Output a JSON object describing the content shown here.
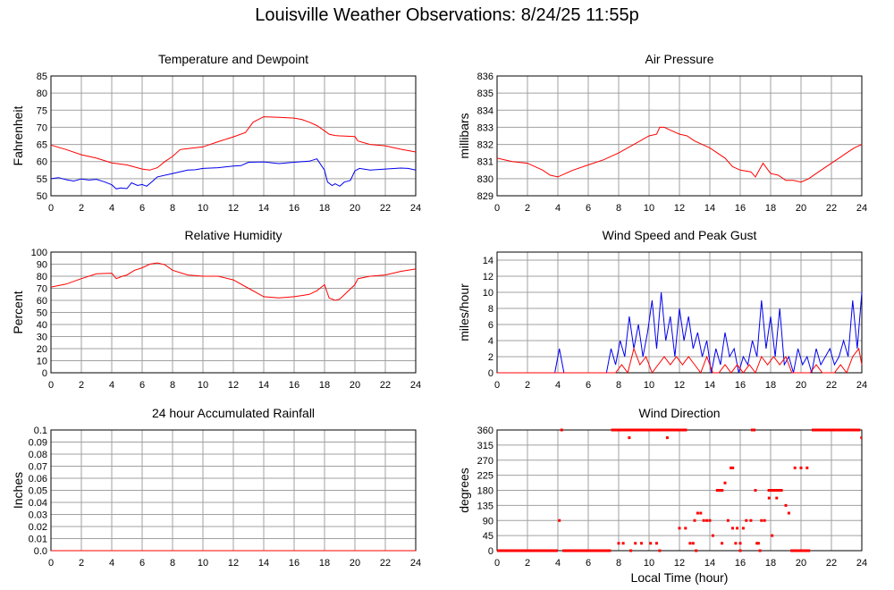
{
  "title": "Louisville Weather Observations: 8/24/25 11:55p",
  "colors": {
    "red": "#ff0000",
    "blue": "#0000ee",
    "grid": "#a0a0a0",
    "frame": "#000000"
  },
  "xlabel_common": "Local Time (hour)",
  "x_ticks": [
    "0",
    "2",
    "4",
    "6",
    "8",
    "10",
    "12",
    "14",
    "16",
    "18",
    "20",
    "22",
    "24"
  ],
  "chart_data": [
    {
      "type": "line",
      "title": "Temperature and Dewpoint",
      "ylabel": "Fahrenheit",
      "ylim": [
        50,
        85
      ],
      "yticks": [
        "50",
        "55",
        "60",
        "65",
        "70",
        "75",
        "80",
        "85"
      ],
      "xlim": [
        0,
        24
      ],
      "series": [
        {
          "color": "#ff0000",
          "x": [
            0,
            1,
            2,
            3,
            4,
            5,
            6,
            6.5,
            7,
            7.5,
            8,
            8.5,
            9,
            10,
            11,
            12,
            12.8,
            13.3,
            14,
            15,
            16,
            16.5,
            17,
            17.5,
            18,
            18.3,
            18.7,
            19,
            20,
            20.2,
            21,
            22,
            23,
            24
          ],
          "y": [
            64.8,
            63.5,
            62,
            61,
            59.6,
            59,
            57.8,
            57.5,
            58.2,
            60,
            61.5,
            63.5,
            63.8,
            64.3,
            65.8,
            67.2,
            68.5,
            71.5,
            73.1,
            72.9,
            72.7,
            72.3,
            71.5,
            70.5,
            69,
            68,
            67.6,
            67.5,
            67.3,
            66,
            65,
            64.6,
            63.6,
            62.8
          ]
        },
        {
          "color": "#0000ee",
          "x": [
            0,
            0.5,
            1,
            1.5,
            2,
            2.5,
            3,
            3.5,
            4,
            4.3,
            4.6,
            5,
            5.3,
            5.7,
            6,
            6.3,
            6.7,
            7,
            8,
            9,
            9.5,
            10,
            11,
            12,
            12.5,
            13,
            14,
            15,
            16,
            17,
            17.5,
            18,
            18.2,
            18.5,
            18.7,
            19,
            19.3,
            19.7,
            20,
            20.3,
            21,
            22,
            23,
            23.5,
            24
          ],
          "y": [
            55,
            55.3,
            54.7,
            54.3,
            54.9,
            54.6,
            54.8,
            54.1,
            53.2,
            52,
            52.3,
            52.1,
            53.8,
            53,
            53.3,
            52.8,
            54.3,
            55.5,
            56.5,
            57.5,
            57.6,
            58,
            58.2,
            58.7,
            58.8,
            59.8,
            59.9,
            59.4,
            59.8,
            60.1,
            60.8,
            57.5,
            54,
            53,
            53.5,
            52.8,
            54,
            54.5,
            57.3,
            58,
            57.5,
            57.8,
            58.1,
            58,
            57.5
          ]
        }
      ]
    },
    {
      "type": "line",
      "title": "Air Pressure",
      "ylabel": "millibars",
      "ylim": [
        829,
        836
      ],
      "yticks": [
        "829",
        "830",
        "831",
        "832",
        "833",
        "834",
        "835",
        "836"
      ],
      "xlim": [
        0,
        24
      ],
      "series": [
        {
          "color": "#ff0000",
          "x": [
            0,
            1,
            2,
            3,
            3.5,
            4,
            4.5,
            5,
            6,
            7,
            8,
            9,
            10,
            10.5,
            10.7,
            11,
            11.5,
            12,
            12.5,
            13,
            14,
            15,
            15.5,
            16,
            16.7,
            17,
            17.5,
            18,
            18.5,
            19,
            19.5,
            20,
            20.5,
            21,
            22,
            22.5,
            23,
            23.5,
            24
          ],
          "y": [
            831.2,
            831,
            830.9,
            830.5,
            830.2,
            830.1,
            830.3,
            830.5,
            830.8,
            831.1,
            831.5,
            832,
            832.5,
            832.6,
            833,
            833,
            832.8,
            832.6,
            832.5,
            832.2,
            831.8,
            831.2,
            830.7,
            830.5,
            830.4,
            830.1,
            830.9,
            830.3,
            830.2,
            829.9,
            829.9,
            829.8,
            830,
            830.3,
            830.9,
            831.2,
            831.5,
            831.8,
            832
          ]
        }
      ]
    },
    {
      "type": "line",
      "title": "Relative Humidity",
      "ylabel": "Percent",
      "ylim": [
        0,
        100
      ],
      "yticks": [
        "0",
        "10",
        "20",
        "30",
        "40",
        "50",
        "60",
        "70",
        "80",
        "90",
        "100"
      ],
      "xlim": [
        0,
        24
      ],
      "series": [
        {
          "color": "#ff0000",
          "x": [
            0,
            1,
            2,
            3,
            4,
            4.3,
            4.7,
            5,
            5.5,
            6,
            6.5,
            7,
            7.5,
            8,
            9,
            10,
            11,
            12,
            13,
            14,
            15,
            16,
            16.5,
            17,
            17.5,
            18,
            18.3,
            18.7,
            19,
            20,
            20.2,
            21,
            22,
            23,
            24
          ],
          "y": [
            71,
            73.5,
            78,
            82,
            82.5,
            78,
            80,
            81,
            85,
            87,
            90,
            91,
            89.5,
            85,
            81,
            80,
            80,
            77,
            70,
            63,
            62,
            63,
            64,
            65,
            68,
            73,
            62,
            60,
            61,
            73,
            78,
            80,
            81,
            84,
            86
          ]
        }
      ]
    },
    {
      "type": "line",
      "title": "Wind Speed and Peak Gust",
      "ylabel": "miles/hour",
      "ylim": [
        0,
        15
      ],
      "yticks": [
        "0",
        "2",
        "4",
        "6",
        "8",
        "10",
        "12",
        "14"
      ],
      "xlim": [
        0,
        24
      ],
      "series": [
        {
          "color": "#0000ee",
          "x": [
            0,
            3.8,
            4.1,
            4.4,
            7.2,
            7.5,
            7.8,
            8.1,
            8.4,
            8.7,
            9,
            9.3,
            9.6,
            9.9,
            10.2,
            10.5,
            10.8,
            11.1,
            11.4,
            11.7,
            12,
            12.3,
            12.6,
            12.9,
            13.2,
            13.5,
            13.8,
            14.1,
            14.4,
            14.7,
            15,
            15.3,
            15.6,
            15.9,
            16.2,
            16.5,
            16.8,
            17.1,
            17.4,
            17.7,
            18,
            18.3,
            18.6,
            18.9,
            19.2,
            19.5,
            19.8,
            20.1,
            20.4,
            20.7,
            21,
            21.3,
            21.6,
            21.9,
            22.2,
            22.5,
            22.8,
            23.1,
            23.4,
            23.7,
            24
          ],
          "y": [
            0,
            0,
            3,
            0,
            0,
            3,
            1,
            4,
            2,
            7,
            3,
            6,
            2,
            5,
            9,
            3,
            10,
            4,
            7,
            2,
            8,
            4,
            7,
            3,
            5,
            2,
            4,
            0,
            3,
            1,
            5,
            2,
            3,
            0,
            2,
            1,
            4,
            2,
            9,
            3,
            7,
            2,
            8,
            1,
            2,
            0,
            3,
            1,
            2,
            0,
            3,
            1,
            2,
            3,
            1,
            2,
            4,
            2,
            9,
            3,
            10
          ]
        },
        {
          "color": "#ff0000",
          "x": [
            0,
            7.8,
            8.2,
            8.6,
            9,
            9.4,
            9.8,
            10.2,
            10.6,
            11,
            11.4,
            11.8,
            12.2,
            12.6,
            13,
            13.4,
            13.8,
            14.2,
            14.6,
            15,
            15.4,
            15.8,
            16.2,
            16.6,
            17,
            17.4,
            17.8,
            18.2,
            18.6,
            19,
            19.4,
            19.8,
            20.2,
            20.6,
            21,
            21.4,
            21.8,
            22.2,
            22.6,
            23,
            23.4,
            23.8,
            24
          ],
          "y": [
            0,
            0,
            1,
            0,
            3,
            1,
            2,
            0,
            1,
            2,
            1,
            2,
            1,
            2,
            1,
            0,
            2,
            0,
            0,
            1,
            0,
            1,
            0,
            1,
            0,
            2,
            1,
            2,
            1,
            2,
            0,
            0,
            0,
            0,
            1,
            0,
            0,
            0,
            1,
            0,
            2,
            3,
            1
          ]
        }
      ]
    },
    {
      "type": "line",
      "title": "24 hour Accumulated Rainfall",
      "ylabel": "Inches",
      "ylim": [
        0,
        0.1
      ],
      "yticks": [
        "0.0",
        "0.01",
        "0.02",
        "0.03",
        "0.04",
        "0.05",
        "0.06",
        "0.07",
        "0.08",
        "0.09",
        "0.1"
      ],
      "xlim": [
        0,
        24
      ],
      "series": [
        {
          "color": "#ff0000",
          "x": [
            0,
            24
          ],
          "y": [
            0,
            0
          ]
        }
      ]
    },
    {
      "type": "scatter",
      "title": "Wind Direction",
      "ylabel": "degrees",
      "xlabel": "Local Time (hour)",
      "ylim": [
        0,
        360
      ],
      "yticks": [
        "0",
        "45",
        "90",
        "135",
        "180",
        "225",
        "270",
        "315",
        "360"
      ],
      "xlim": [
        0,
        24
      ],
      "segments": [
        {
          "x1": 0,
          "x2": 4.0,
          "y": 0
        },
        {
          "x1": 4.3,
          "x2": 7.5,
          "y": 0
        },
        {
          "x1": 7.5,
          "x2": 11.5,
          "y": 360
        },
        {
          "x1": 11.5,
          "x2": 12.5,
          "y": 360
        },
        {
          "x1": 14.4,
          "x2": 14.9,
          "y": 180
        },
        {
          "x1": 15.3,
          "x2": 15.6,
          "y": 247
        },
        {
          "x1": 16.7,
          "x2": 17.0,
          "y": 360
        },
        {
          "x1": 17.8,
          "x2": 18.8,
          "y": 180
        },
        {
          "x1": 19.3,
          "x2": 20.6,
          "y": 0
        },
        {
          "x1": 20.7,
          "x2": 23.9,
          "y": 360
        },
        {
          "x1": 23.9,
          "x2": 24,
          "y": 337
        }
      ],
      "points": {
        "x": [
          4.1,
          4.25,
          8.7,
          9.1,
          9.5,
          10.5,
          11.2,
          12.0,
          12.4,
          12.7,
          12.9,
          13.0,
          13.2,
          13.4,
          13.6,
          13.8,
          14.0,
          14.2,
          14.5,
          14.8,
          15.0,
          15.2,
          15.5,
          15.8,
          16.0,
          16.2,
          16.4,
          16.7,
          17.0,
          17.2,
          17.4,
          17.6,
          17.9,
          18.1,
          18.4,
          18.7,
          19.0,
          19.2,
          19.6,
          20.0,
          20.4,
          8.0,
          8.3,
          8.8,
          9.6,
          10.1,
          10.7,
          11.1,
          13.1,
          15.7,
          16.0,
          17.1,
          17.3
        ],
        "y": [
          90,
          360,
          337,
          22,
          22,
          22,
          337,
          67,
          67,
          22,
          22,
          90,
          112,
          112,
          90,
          90,
          90,
          45,
          180,
          22,
          202,
          90,
          67,
          67,
          22,
          67,
          90,
          90,
          180,
          22,
          90,
          90,
          157,
          45,
          157,
          180,
          135,
          112,
          247,
          247,
          247,
          22,
          22,
          0,
          360,
          22,
          0,
          360,
          0,
          22,
          0,
          22,
          0
        ]
      }
    }
  ]
}
